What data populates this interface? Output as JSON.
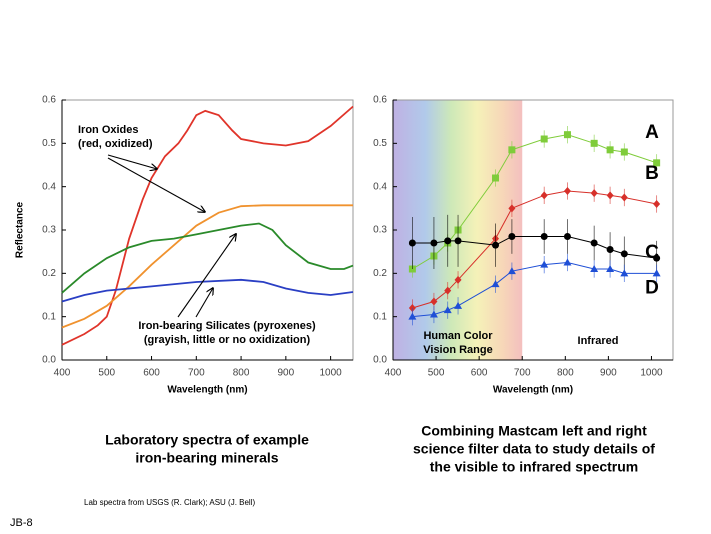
{
  "chart_data": [
    {
      "type": "line",
      "xlabel": "Wavelength (nm)",
      "ylabel": "Reflectance",
      "xlim": [
        400,
        1050
      ],
      "xticks": [
        400,
        500,
        600,
        700,
        800,
        900,
        1000
      ],
      "ylim": [
        0,
        0.6
      ],
      "yticks": [
        {
          "value": 0,
          "label": "0.0"
        },
        0.1,
        0.2,
        0.3,
        0.4,
        0.5,
        0.6
      ],
      "annotations": [
        "Iron Oxides",
        "(red, oxidized)",
        "Iron-bearing Silicates (pyroxenes)",
        "(grayish, little or no oxidization)"
      ],
      "series": [
        {
          "color": "#e0342a",
          "x": [
            400,
            450,
            480,
            500,
            520,
            550,
            580,
            600,
            630,
            660,
            680,
            700,
            720,
            750,
            780,
            800,
            850,
            900,
            950,
            1000,
            1050
          ],
          "values": [
            0.035,
            0.06,
            0.08,
            0.1,
            0.16,
            0.28,
            0.37,
            0.42,
            0.47,
            0.5,
            0.53,
            0.565,
            0.575,
            0.565,
            0.53,
            0.51,
            0.5,
            0.495,
            0.505,
            0.54,
            0.585
          ]
        },
        {
          "color": "#f0922e",
          "x": [
            400,
            450,
            500,
            550,
            600,
            650,
            700,
            750,
            800,
            850,
            900,
            1000,
            1050
          ],
          "values": [
            0.075,
            0.095,
            0.125,
            0.17,
            0.22,
            0.265,
            0.31,
            0.34,
            0.355,
            0.357,
            0.357,
            0.357,
            0.357
          ]
        },
        {
          "color": "#2a8a2a",
          "x": [
            400,
            450,
            500,
            550,
            600,
            650,
            700,
            750,
            800,
            840,
            870,
            900,
            950,
            1000,
            1030,
            1050
          ],
          "values": [
            0.155,
            0.2,
            0.235,
            0.26,
            0.275,
            0.28,
            0.29,
            0.3,
            0.31,
            0.315,
            0.3,
            0.265,
            0.225,
            0.21,
            0.21,
            0.218
          ]
        },
        {
          "color": "#2a3fc4",
          "x": [
            400,
            450,
            500,
            600,
            700,
            800,
            850,
            900,
            950,
            1000,
            1050
          ],
          "values": [
            0.135,
            0.15,
            0.16,
            0.17,
            0.18,
            0.185,
            0.18,
            0.165,
            0.155,
            0.15,
            0.157
          ]
        }
      ]
    },
    {
      "type": "scatter_line",
      "xlabel": "Wavelength (nm)",
      "xlim": [
        400,
        1050
      ],
      "xticks": [
        400,
        500,
        600,
        700,
        800,
        900,
        1000
      ],
      "ylim": [
        0,
        0.6
      ],
      "yticks": [
        {
          "value": 0,
          "label": "0.0"
        },
        0.1,
        0.2,
        0.3,
        0.4,
        0.5,
        0.6
      ],
      "shaded_range": [
        400,
        700
      ],
      "annotations": [
        "Human Color",
        "Vision Range",
        "Infrared"
      ],
      "x": [
        445,
        495,
        527,
        551,
        638,
        676,
        751,
        805,
        867,
        904,
        937,
        1012
      ],
      "series": [
        {
          "name": "A",
          "color": "#7fcc3a",
          "marker": "square",
          "values": [
            0.21,
            0.24,
            0.27,
            0.3,
            0.42,
            0.485,
            0.51,
            0.52,
            0.5,
            0.485,
            0.48,
            0.455
          ],
          "errors": [
            0.02,
            0.02,
            0.02,
            0.02,
            0.02,
            0.02,
            0.02,
            0.02,
            0.02,
            0.02,
            0.02,
            0.02
          ]
        },
        {
          "name": "B",
          "color": "#d7302a",
          "marker": "diamond",
          "values": [
            0.12,
            0.135,
            0.16,
            0.185,
            0.28,
            0.35,
            0.38,
            0.39,
            0.385,
            0.38,
            0.375,
            0.36
          ],
          "errors": [
            0.02,
            0.02,
            0.02,
            0.02,
            0.02,
            0.02,
            0.02,
            0.02,
            0.02,
            0.02,
            0.02,
            0.02
          ]
        },
        {
          "name": "C",
          "color": "#000000",
          "marker": "circle",
          "values": [
            0.27,
            0.27,
            0.275,
            0.275,
            0.265,
            0.285,
            0.285,
            0.285,
            0.27,
            0.255,
            0.245,
            0.235
          ],
          "errors": [
            0.06,
            0.06,
            0.06,
            0.06,
            0.05,
            0.04,
            0.04,
            0.04,
            0.04,
            0.04,
            0.04,
            0.04
          ]
        },
        {
          "name": "D",
          "color": "#1f4fd6",
          "marker": "triangle",
          "values": [
            0.1,
            0.105,
            0.115,
            0.125,
            0.175,
            0.205,
            0.22,
            0.225,
            0.21,
            0.21,
            0.2,
            0.2
          ],
          "errors": [
            0.02,
            0.02,
            0.02,
            0.02,
            0.02,
            0.02,
            0.02,
            0.02,
            0.02,
            0.02,
            0.02,
            0.02
          ]
        }
      ]
    }
  ],
  "captions": [
    [
      "Laboratory spectra of example",
      "iron-bearing minerals"
    ],
    [
      "Combining Mastcam left and right",
      "science filter data to study details of",
      "the visible to infrared spectrum"
    ]
  ],
  "footer": "Lab spectra from USGS (R. Clark); ASU (J. Bell)",
  "slide_number": "JB-8"
}
